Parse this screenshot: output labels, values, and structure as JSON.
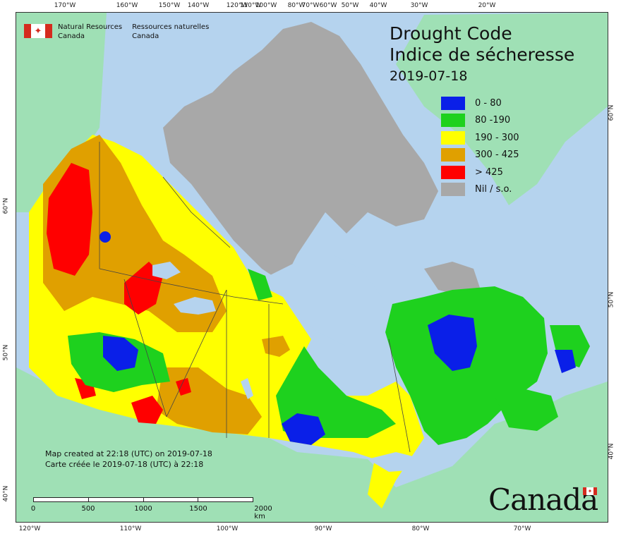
{
  "title": {
    "line1": "Drought Code",
    "line2": "Indice de sécheresse",
    "date": "2019-07-18"
  },
  "legend": [
    {
      "label": "0 - 80",
      "color": "#0a1fe8"
    },
    {
      "label": "80 -190",
      "color": "#1ed11e"
    },
    {
      "label": "190 - 300",
      "color": "#ffff00"
    },
    {
      "label": "300 - 425",
      "color": "#e0a000"
    },
    {
      "label": "> 425",
      "color": "#ff0000"
    },
    {
      "label": "Nil / s.o.",
      "color": "#a8a8a8"
    }
  ],
  "agency": {
    "en_line1": "Natural Resources",
    "en_line2": "Canada",
    "fr_line1": "Ressources naturelles",
    "fr_line2": "Canada",
    "flag_glyph": "✦"
  },
  "credit": {
    "en": "Map created at 22:18 (UTC) on 2019-07-18",
    "fr": "Carte créée le 2019-07-18 (UTC) à 22:18"
  },
  "scale": {
    "labels": [
      "0",
      "500",
      "1000",
      "1500",
      "2000  km"
    ]
  },
  "wordmark": "Canada",
  "graticule": {
    "top": [
      "170°W",
      "160°W",
      "150°W",
      "140°W",
      "120°W",
      "110°W",
      "100°W",
      "80°W",
      "70°W",
      "60°W",
      "50°W",
      "40°W",
      "30°W",
      "20°W"
    ],
    "bottom": [
      "120°W",
      "110°W",
      "100°W",
      "90°W",
      "80°W",
      "70°W"
    ],
    "left": [
      "60°N",
      "50°N",
      "40°N"
    ],
    "right": [
      "60°N",
      "50°N",
      "40°N"
    ]
  },
  "colors": {
    "water": "#b5d3ee",
    "land_foreign": "#9fe0b5",
    "nil": "#a8a8a8"
  }
}
